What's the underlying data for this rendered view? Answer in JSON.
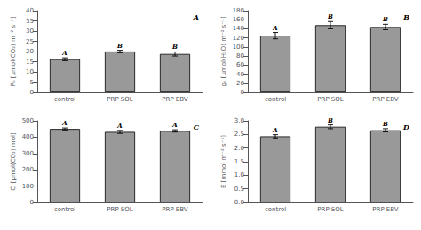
{
  "chart_data": [
    {
      "type": "bar",
      "annotations": [
        "A"
      ],
      "ylabel": "Pₙ [μmol(CO₂) m⁻² s⁻¹]",
      "categories": [
        "control",
        "PRP SOL",
        "PRP EBV"
      ],
      "values": [
        16.2,
        20.0,
        18.8
      ],
      "errors": [
        0.7,
        0.6,
        1.0
      ],
      "sig_labels": [
        "A",
        "B",
        "B"
      ],
      "color": "#999999",
      "ylim": [
        0,
        40
      ],
      "yticks": [
        0,
        5,
        10,
        15,
        20,
        25,
        30,
        35,
        40
      ],
      "grid": false
    },
    {
      "type": "bar",
      "annotations": [
        "B"
      ],
      "ylabel": "gₛ [μmol(H₂O) m⁻² s⁻¹]",
      "categories": [
        "control",
        "PRP SOL",
        "PRP EBV"
      ],
      "values": [
        125,
        148,
        144
      ],
      "errors": [
        7,
        8,
        6
      ],
      "sig_labels": [
        "A",
        "B",
        "B"
      ],
      "color": "#999999",
      "ylim": [
        0,
        180
      ],
      "yticks": [
        0,
        20,
        40,
        60,
        80,
        100,
        120,
        140,
        160,
        180
      ],
      "grid": false
    },
    {
      "type": "bar",
      "annotations": [
        "C"
      ],
      "ylabel": "Cᵢ [μmol(CO₂) mol]",
      "categories": [
        "control",
        "PRP SOL",
        "PRP EBV"
      ],
      "values": [
        450,
        432,
        438
      ],
      "errors": [
        6,
        9,
        7
      ],
      "sig_labels": [
        "A",
        "A",
        "A"
      ],
      "color": "#999999",
      "ylim": [
        0,
        500
      ],
      "yticks": [
        0,
        100,
        200,
        300,
        400,
        500
      ],
      "grid": false
    },
    {
      "type": "bar",
      "annotations": [
        "D"
      ],
      "ylabel": "E [mmol m⁻² s⁻¹]",
      "categories": [
        "control",
        "PRP SOL",
        "PRP EBV"
      ],
      "values": [
        2.43,
        2.78,
        2.65
      ],
      "errors": [
        0.06,
        0.07,
        0.06
      ],
      "sig_labels": [
        "A",
        "B",
        "B"
      ],
      "color": "#999999",
      "ylim": [
        0.0,
        3.0
      ],
      "yticks": [
        {
          "value": 0.0,
          "label": "0.0"
        },
        {
          "value": 0.5,
          "label": "0.5"
        },
        {
          "value": 1.0,
          "label": "1.0"
        },
        {
          "value": 1.5,
          "label": "1.5"
        },
        {
          "value": 2.0,
          "label": "2.0"
        },
        {
          "value": 2.5,
          "label": "2.5"
        },
        {
          "value": 3.0,
          "label": "3.0"
        }
      ],
      "grid": false
    }
  ]
}
